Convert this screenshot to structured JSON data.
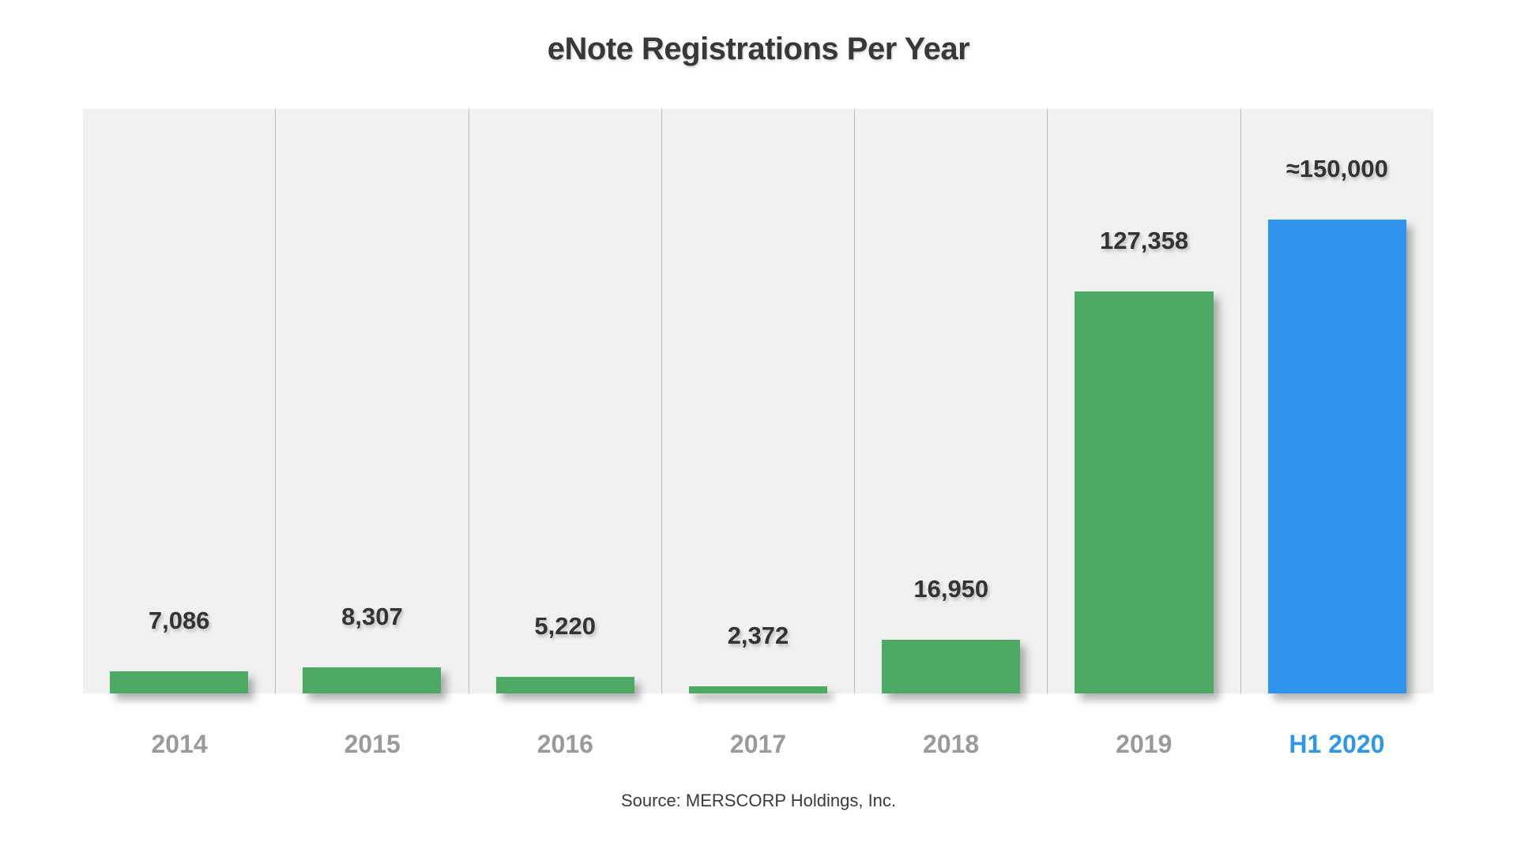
{
  "chart": {
    "title": "eNote Registrations Per Year",
    "source": "Source: MERSCORP Holdings, Inc.",
    "colors": {
      "green_bar": "#4daa65",
      "blue_bar": "#3094ec",
      "value_label": "#333333",
      "year_tick": "#9a9a9a",
      "highlight_tick": "#2e97ec",
      "plot_background": "#f1f1f1",
      "gridline": "#b9b9b9",
      "page_background": "#ffffff"
    }
  },
  "chart_data": {
    "type": "bar",
    "title": "eNote Registrations Per Year",
    "categories": [
      "2014",
      "2015",
      "2016",
      "2017",
      "2018",
      "2019",
      "H1 2020"
    ],
    "values": [
      7086,
      8307,
      5220,
      2372,
      16950,
      127358,
      150000
    ],
    "value_labels": [
      "7,086",
      "8,307",
      "5,220",
      "2,372",
      "16,950",
      "127,358",
      "≈150,000"
    ],
    "bar_colors": [
      "#4daa65",
      "#4daa65",
      "#4daa65",
      "#4daa65",
      "#4daa65",
      "#4daa65",
      "#3094ec"
    ],
    "tick_colors": [
      "#9a9a9a",
      "#9a9a9a",
      "#9a9a9a",
      "#9a9a9a",
      "#9a9a9a",
      "#9a9a9a",
      "#2e97ec"
    ],
    "xlabel": "",
    "ylabel": "",
    "ylim": [
      0,
      185000
    ],
    "grid": "vertical-column-separators",
    "legend": "none",
    "annotation_note": "H1 2020 value is approximate (≈150,000)",
    "source": "Source: MERSCORP Holdings, Inc."
  }
}
